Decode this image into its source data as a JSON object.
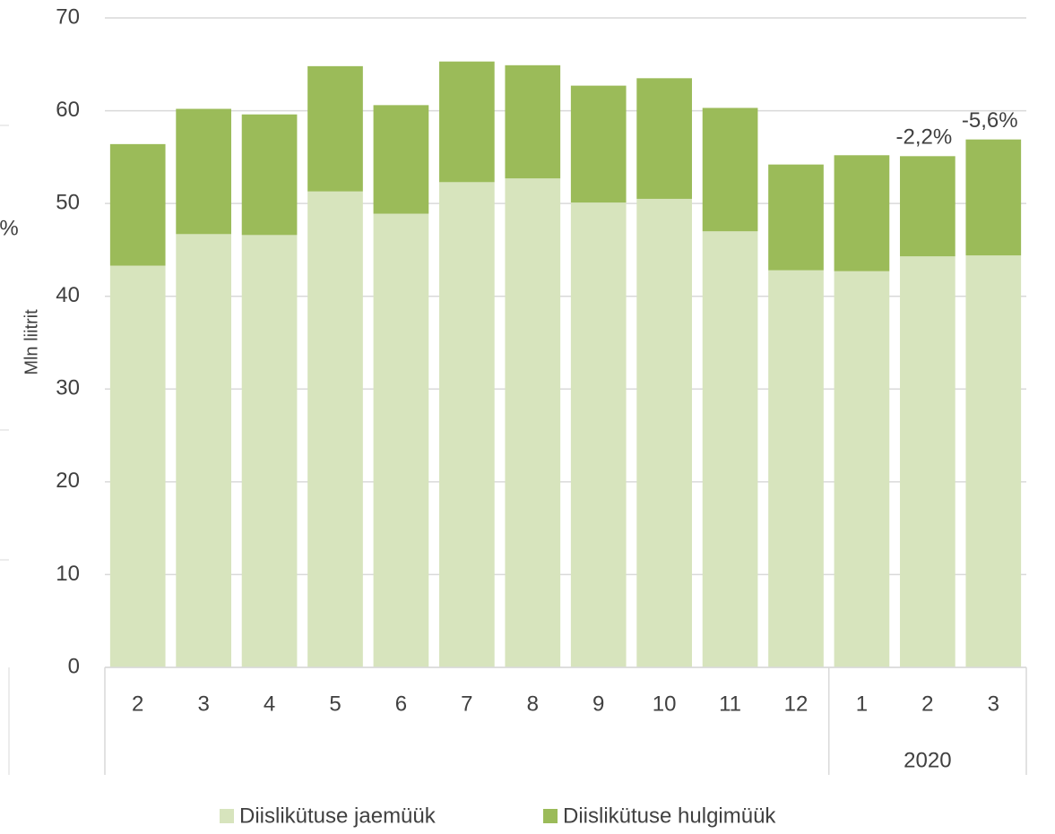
{
  "chart_data": {
    "type": "stacked_bar",
    "y_label": "Mln liitrit",
    "left_fragment": "%",
    "categories": [
      "2",
      "3",
      "4",
      "5",
      "6",
      "7",
      "8",
      "9",
      "10",
      "11",
      "12",
      "1",
      "2",
      "3"
    ],
    "category_years": [
      null,
      null,
      null,
      null,
      null,
      null,
      null,
      null,
      null,
      null,
      null,
      "2020",
      "2020",
      "2020"
    ],
    "series": [
      {
        "name": "Diislikütuse jaemüük",
        "color": "#d7e4bd",
        "values": [
          43.3,
          46.7,
          46.6,
          51.3,
          48.9,
          52.3,
          52.7,
          50.1,
          50.5,
          47.0,
          42.8,
          42.7,
          44.3,
          44.4
        ]
      },
      {
        "name": "Diislikütuse hulgimüük",
        "color": "#9bbb59",
        "values": [
          13.1,
          13.5,
          13.0,
          13.5,
          11.7,
          13.0,
          12.2,
          12.6,
          13.0,
          13.3,
          11.4,
          12.5,
          10.8,
          12.5
        ]
      }
    ],
    "annotations": [
      "-2,2%",
      "-5,6%"
    ],
    "ylim": [
      0,
      70
    ],
    "yticks": [
      0,
      10,
      20,
      30,
      40,
      50,
      60,
      70
    ],
    "grid": true,
    "legend": "bottom"
  }
}
